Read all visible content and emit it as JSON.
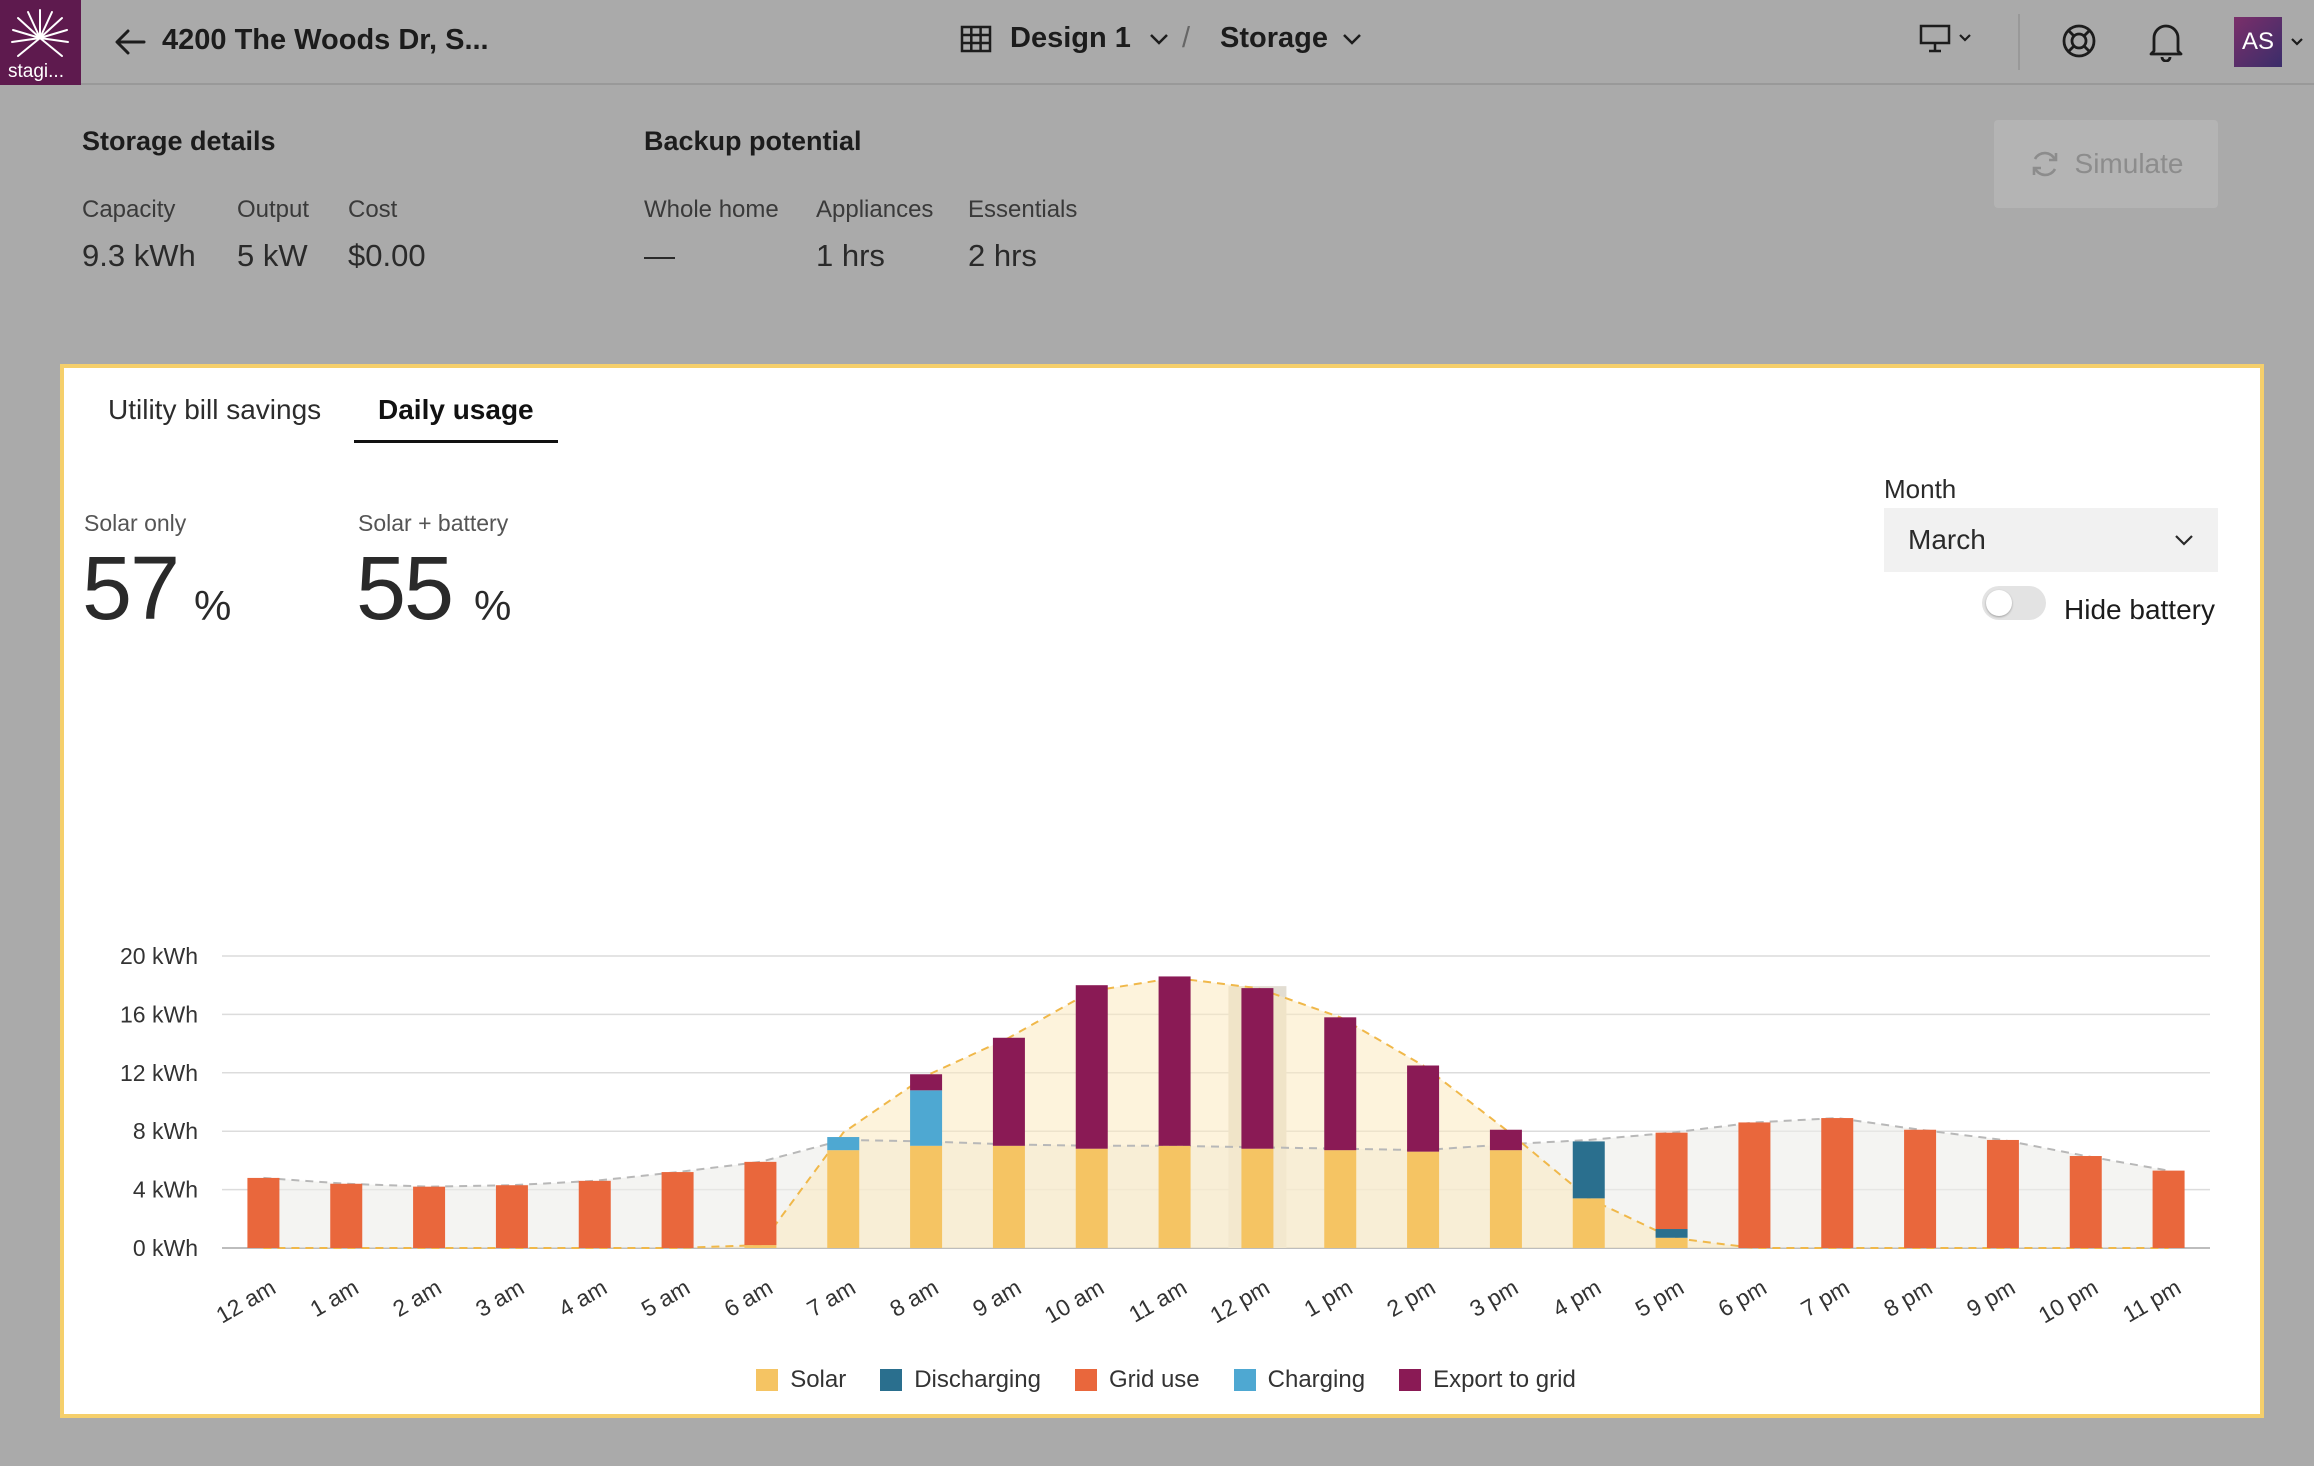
{
  "app": {
    "logo_text": "stagi...",
    "project_title": "4200 The Woods Dr, S...",
    "design_label": "Design 1",
    "separator": "/",
    "mode_label": "Storage",
    "avatar_initials": "AS"
  },
  "storage": {
    "title": "Storage details",
    "capacity_label": "Capacity",
    "capacity_value": "9.3 kWh",
    "output_label": "Output",
    "output_value": "5 kW",
    "cost_label": "Cost",
    "cost_value": "$0.00"
  },
  "backup": {
    "title": "Backup potential",
    "whole_home_label": "Whole home",
    "whole_home_value": "—",
    "appliances_label": "Appliances",
    "appliances_value": "1 hrs",
    "essentials_label": "Essentials",
    "essentials_value": "2 hrs"
  },
  "simulate_label": "Simulate",
  "tabs": [
    {
      "label": "Utility bill savings",
      "active": false
    },
    {
      "label": "Daily usage",
      "active": true
    }
  ],
  "offset": {
    "solar_only_label": "Solar only",
    "solar_only_value": "57",
    "solar_only_unit": "%",
    "solar_battery_label": "Solar + battery",
    "solar_battery_value": "55",
    "solar_battery_unit": "%"
  },
  "month": {
    "label": "Month",
    "selected": "March"
  },
  "hide_battery": {
    "label": "Hide battery",
    "on": false
  },
  "colors": {
    "solar": "#f5c463",
    "discharging": "#2a6f8e",
    "grid_use": "#e9673c",
    "charging": "#4ea8d2",
    "export": "#8a1a55"
  },
  "chart_data": {
    "type": "bar",
    "stacked": true,
    "ylabel": "",
    "yticks": [
      "0 kWh",
      "4 kWh",
      "8 kWh",
      "12 kWh",
      "16 kWh",
      "20 kWh"
    ],
    "ylim": [
      0,
      20
    ],
    "categories": [
      "12 am",
      "1 am",
      "2 am",
      "3 am",
      "4 am",
      "5 am",
      "6 am",
      "7 am",
      "8 am",
      "9 am",
      "10 am",
      "11 am",
      "12 pm",
      "1 pm",
      "2 pm",
      "3 pm",
      "4 pm",
      "5 pm",
      "6 pm",
      "7 pm",
      "8 pm",
      "9 pm",
      "10 pm",
      "11 pm"
    ],
    "series": [
      {
        "name": "Solar",
        "key": "solar",
        "values": [
          0,
          0,
          0,
          0,
          0,
          0,
          0.2,
          6.7,
          7.0,
          7.0,
          6.8,
          7.0,
          6.8,
          6.7,
          6.6,
          6.7,
          3.4,
          0.7,
          0,
          0,
          0,
          0,
          0,
          0
        ]
      },
      {
        "name": "Discharging",
        "key": "discharging",
        "values": [
          0,
          0,
          0,
          0,
          0,
          0,
          0,
          0,
          0,
          0,
          0,
          0,
          0,
          0,
          0,
          0,
          3.9,
          0.6,
          0,
          0,
          0,
          0,
          0,
          0
        ]
      },
      {
        "name": "Grid use",
        "key": "grid_use",
        "values": [
          4.8,
          4.4,
          4.2,
          4.3,
          4.6,
          5.2,
          5.7,
          0,
          0,
          0,
          0,
          0,
          0,
          0,
          0,
          0,
          0,
          6.6,
          8.6,
          8.9,
          8.1,
          7.4,
          6.3,
          5.3
        ]
      },
      {
        "name": "Charging",
        "key": "charging",
        "values": [
          0,
          0,
          0,
          0,
          0,
          0,
          0,
          0.9,
          3.8,
          0,
          0,
          0,
          0,
          0,
          0,
          0,
          0,
          0,
          0,
          0,
          0,
          0,
          0,
          0
        ]
      },
      {
        "name": "Export to grid",
        "key": "export",
        "values": [
          0,
          0,
          0,
          0,
          0,
          0,
          0,
          0,
          1.1,
          7.4,
          11.2,
          11.6,
          11.0,
          9.1,
          5.9,
          1.4,
          0,
          0,
          0,
          0,
          0,
          0,
          0,
          0
        ]
      }
    ],
    "production_curve": [
      0,
      0,
      0,
      0,
      0,
      0,
      0.2,
      7.9,
      11.8,
      14.4,
      17.6,
      18.5,
      17.8,
      15.8,
      12.5,
      8.1,
      3.4,
      0.7,
      0,
      0,
      0,
      0,
      0,
      0
    ],
    "consumption_curve": [
      4.8,
      4.4,
      4.2,
      4.3,
      4.6,
      5.2,
      5.9,
      7.4,
      7.3,
      7.1,
      7.0,
      7.0,
      6.9,
      6.8,
      6.7,
      7.1,
      7.4,
      7.9,
      8.6,
      8.9,
      8.1,
      7.4,
      6.3,
      5.3
    ],
    "highlighted_category": "12 pm",
    "grid": true,
    "legend_position": "bottom-center"
  }
}
